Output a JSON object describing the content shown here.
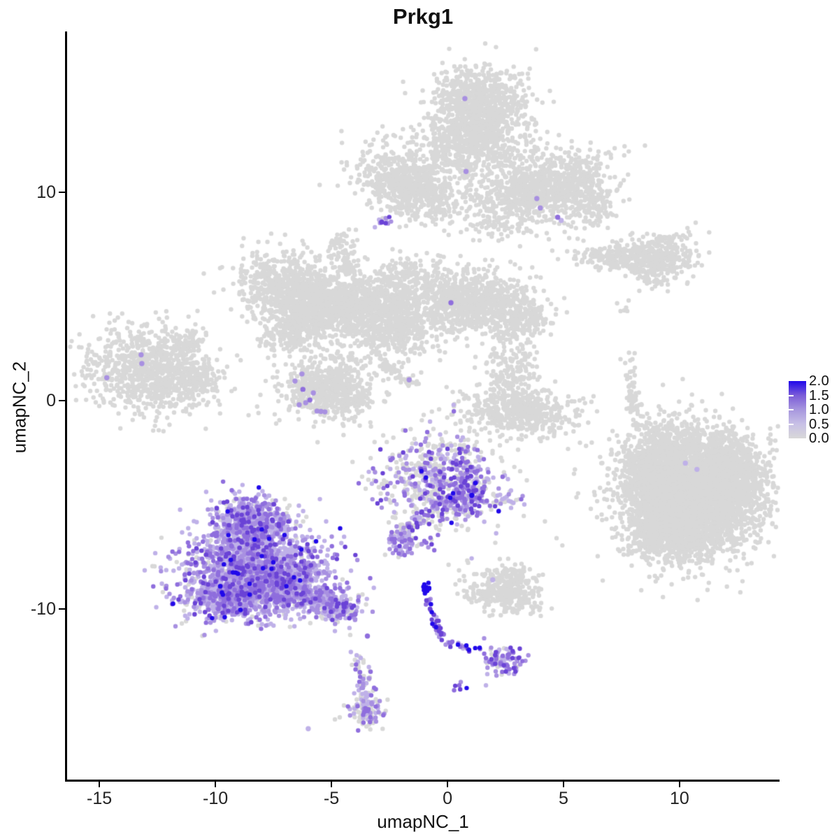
{
  "title": "Prkg1",
  "axes": {
    "x_label": "umapNC_1",
    "y_label": "umapNC_2",
    "x_ticks": [
      -15,
      -10,
      -5,
      0,
      5,
      10
    ],
    "y_ticks": [
      10,
      0,
      -10
    ]
  },
  "legend": {
    "tick_labels": [
      "2.0",
      "1.5",
      "1.0",
      "0.5",
      "0.0"
    ],
    "tick_values": [
      2.0,
      1.5,
      1.0,
      0.5,
      0.0
    ],
    "gradient_top_to_bottom": [
      "#2008ea",
      "#7b5cd8",
      "#a797de",
      "#c8c0e6",
      "#d8d8d8"
    ],
    "inner_tick_values": [
      1.5,
      1.0,
      0.5
    ]
  },
  "chart_data": {
    "type": "scatter",
    "title": "Prkg1",
    "subtitle": "",
    "xlabel": "umapNC_1",
    "ylabel": "umapNC_2",
    "xlim": [
      -16.42,
      14.31
    ],
    "ylim": [
      -18.19,
      17.72
    ],
    "x_ticks": [
      -15,
      -10,
      -5,
      0,
      5,
      10
    ],
    "y_ticks": [
      -10,
      0,
      10
    ],
    "grid": false,
    "legend_position": "right",
    "color_scale": {
      "label_range": [
        0.0,
        2.0
      ],
      "ticks": [
        0.0,
        0.5,
        1.0,
        1.5,
        2.0
      ],
      "low_color": "#d8d8d8",
      "high_color": "#2008ea"
    },
    "point_radius_px": 3.2,
    "highlight_radius_px": 3.7,
    "seed": 1337,
    "palette": {
      "0": "#d8d8d8",
      "0.5": "#bfb1e8",
      "0.75": "#a890e1",
      "1": "#8f6edd",
      "1.5": "#6a43d6",
      "2": "#2008ea"
    },
    "mixes": {
      "grey": [
        [
          "0",
          1.0
        ]
      ],
      "light_purple": [
        [
          "0",
          0.13
        ],
        [
          "0.5",
          0.5
        ],
        [
          "0.75",
          0.18
        ],
        [
          "1",
          0.12
        ],
        [
          "1.5",
          0.06
        ],
        [
          "2",
          0.01
        ]
      ],
      "purple_tail": [
        [
          "0",
          0.3
        ],
        [
          "0.5",
          0.38
        ],
        [
          "0.75",
          0.16
        ],
        [
          "1",
          0.1
        ],
        [
          "1.5",
          0.06
        ]
      ],
      "mixed_center": [
        [
          "0",
          0.5
        ],
        [
          "0.5",
          0.16
        ],
        [
          "0.75",
          0.12
        ],
        [
          "1",
          0.12
        ],
        [
          "1.5",
          0.08
        ],
        [
          "2",
          0.02
        ]
      ],
      "purple_trail": [
        [
          "0",
          0.18
        ],
        [
          "0.5",
          0.26
        ],
        [
          "0.75",
          0.22
        ],
        [
          "1",
          0.2
        ],
        [
          "1.5",
          0.14
        ]
      ],
      "purple_chain": [
        [
          "0.5",
          0.1
        ],
        [
          "0.75",
          0.2
        ],
        [
          "1",
          0.3
        ],
        [
          "1.5",
          0.25
        ],
        [
          "2",
          0.15
        ]
      ],
      "dark_streak": [
        [
          "1.5",
          0.25
        ],
        [
          "2",
          0.75
        ]
      ],
      "bottom_small": [
        [
          "0",
          0.42
        ],
        [
          "0.5",
          0.34
        ],
        [
          "0.75",
          0.14
        ],
        [
          "1",
          0.1
        ]
      ]
    },
    "clusters": [
      {
        "name": "top-head",
        "type": "blob",
        "cx": 1.4,
        "cy": 14.1,
        "sx": 1.0,
        "sy": 0.95,
        "rot": 0,
        "n": 900,
        "mix": "grey"
      },
      {
        "name": "top-bridge",
        "type": "blob",
        "cx": 1.0,
        "cy": 12.2,
        "sx": 1.1,
        "sy": 0.7,
        "rot": 0,
        "n": 500,
        "mix": "grey"
      },
      {
        "name": "top-left-wing",
        "type": "blob",
        "cx": -1.6,
        "cy": 10.4,
        "sx": 1.2,
        "sy": 0.75,
        "rot": -28,
        "n": 750,
        "mix": "grey"
      },
      {
        "name": "top-right-wing",
        "type": "blob",
        "cx": 4.1,
        "cy": 10.1,
        "sx": 1.45,
        "sy": 0.8,
        "rot": 16,
        "n": 1000,
        "mix": "grey"
      },
      {
        "name": "top-right-tip",
        "type": "blob",
        "cx": 6.4,
        "cy": 9.3,
        "sx": 0.4,
        "sy": 0.55,
        "rot": 0,
        "n": 90,
        "mix": "grey"
      },
      {
        "name": "top-gap-scatter",
        "type": "blob",
        "cx": 2.2,
        "cy": 8.9,
        "sx": 0.85,
        "sy": 0.8,
        "rot": 0,
        "n": 70,
        "mix": "grey"
      },
      {
        "name": "topdot-purple",
        "type": "blob",
        "cx": -2.85,
        "cy": 8.6,
        "sx": 0.18,
        "sy": 0.16,
        "rot": 0,
        "n": 12,
        "mix": "purple_trail"
      },
      {
        "name": "triangle-blob",
        "type": "blob",
        "cx": -4.6,
        "cy": 7.3,
        "sx": 0.33,
        "sy": 0.5,
        "rot": 0,
        "n": 70,
        "mix": "grey"
      },
      {
        "name": "triangle-trail",
        "type": "line",
        "x1": -4.45,
        "y1": 6.6,
        "x2": -3.45,
        "y2": 4.85,
        "spread": 0.13,
        "n": 35,
        "mix": "grey"
      },
      {
        "name": "mid-left-wing",
        "type": "blob",
        "cx": -6.6,
        "cy": 5.3,
        "sx": 1.1,
        "sy": 0.8,
        "rot": -20,
        "n": 850,
        "mix": "grey"
      },
      {
        "name": "mid-left-lower",
        "type": "blob",
        "cx": -6.2,
        "cy": 3.5,
        "sx": 0.9,
        "sy": 0.5,
        "rot": 28,
        "n": 420,
        "mix": "grey"
      },
      {
        "name": "mid-bridge",
        "type": "blob",
        "cx": -4.5,
        "cy": 4.7,
        "sx": 0.75,
        "sy": 0.45,
        "rot": -10,
        "n": 260,
        "mix": "grey"
      },
      {
        "name": "mid-center",
        "type": "blob",
        "cx": -2.6,
        "cy": 4.1,
        "sx": 1.1,
        "sy": 1.0,
        "rot": 0,
        "n": 950,
        "mix": "grey"
      },
      {
        "name": "mid-right-arm",
        "type": "blob",
        "cx": 1.1,
        "cy": 4.7,
        "sx": 1.3,
        "sy": 0.75,
        "rot": -8,
        "n": 950,
        "mix": "grey"
      },
      {
        "name": "mid-right-tip",
        "type": "blob",
        "cx": 3.35,
        "cy": 4.0,
        "sx": 0.5,
        "sy": 0.42,
        "rot": -25,
        "n": 150,
        "mix": "grey"
      },
      {
        "name": "mid-upper-scatter",
        "type": "blob",
        "cx": -1.9,
        "cy": 6.2,
        "sx": 0.85,
        "sy": 0.55,
        "rot": 0,
        "n": 90,
        "mix": "grey"
      },
      {
        "name": "mid-lower-round",
        "type": "blob",
        "cx": -5.1,
        "cy": 0.6,
        "sx": 1.0,
        "sy": 0.72,
        "rot": -10,
        "n": 620,
        "mix": "grey"
      },
      {
        "name": "diag-streak",
        "type": "line",
        "x1": -2.95,
        "y1": 1.9,
        "x2": -1.4,
        "y2": 0.7,
        "spread": 0.12,
        "n": 55,
        "mix": "grey"
      },
      {
        "name": "fish-main",
        "type": "blob",
        "cx": -12.8,
        "cy": 1.5,
        "sx": 1.35,
        "sy": 1.0,
        "rot": -8,
        "n": 900,
        "mix": "grey"
      },
      {
        "name": "fish-fin",
        "type": "blob",
        "cx": -11.35,
        "cy": 2.7,
        "sx": 0.42,
        "sy": 0.28,
        "rot": 42,
        "n": 70,
        "mix": "grey"
      },
      {
        "name": "fish-tail",
        "type": "blob",
        "cx": -10.7,
        "cy": 1.0,
        "sx": 0.45,
        "sy": 0.35,
        "rot": 0,
        "n": 90,
        "mix": "grey"
      },
      {
        "name": "rt-strip",
        "type": "blob",
        "cx": 7.5,
        "cy": 6.9,
        "sx": 1.05,
        "sy": 0.3,
        "rot": -5,
        "n": 220,
        "mix": "grey"
      },
      {
        "name": "rt-blob",
        "type": "blob",
        "cx": 9.3,
        "cy": 7.0,
        "sx": 0.75,
        "sy": 0.55,
        "rot": 0,
        "n": 280,
        "mix": "grey"
      },
      {
        "name": "rt-diag",
        "type": "blob",
        "cx": 8.7,
        "cy": 5.9,
        "sx": 0.38,
        "sy": 0.18,
        "rot": -35,
        "n": 45,
        "mix": "grey"
      },
      {
        "name": "rt-dots",
        "type": "blob",
        "cx": 7.7,
        "cy": 4.7,
        "sx": 0.3,
        "sy": 0.3,
        "rot": 0,
        "n": 7,
        "mix": "grey"
      },
      {
        "name": "cr-main",
        "type": "blob",
        "cx": 3.1,
        "cy": -0.5,
        "sx": 1.25,
        "sy": 0.55,
        "rot": -4,
        "n": 520,
        "mix": "grey"
      },
      {
        "name": "cr-upper",
        "type": "blob",
        "cx": 2.75,
        "cy": 1.4,
        "sx": 0.5,
        "sy": 0.95,
        "rot": 8,
        "n": 170,
        "mix": "grey"
      },
      {
        "name": "cr-topdots",
        "type": "blob",
        "cx": 2.55,
        "cy": 3.1,
        "sx": 0.2,
        "sy": 0.45,
        "rot": 0,
        "n": 8,
        "mix": "grey"
      },
      {
        "name": "r-strip-v",
        "type": "blob",
        "cx": 7.95,
        "cy": 0.2,
        "sx": 0.15,
        "sy": 0.6,
        "rot": 8,
        "n": 55,
        "mix": "grey"
      },
      {
        "name": "r-dots-upper",
        "type": "blob",
        "cx": 7.75,
        "cy": 1.9,
        "sx": 0.25,
        "sy": 0.5,
        "rot": 0,
        "n": 9,
        "mix": "grey"
      },
      {
        "name": "rbig-trail",
        "type": "line",
        "x1": 8.15,
        "y1": -0.7,
        "x2": 9.4,
        "y2": -2.1,
        "spread": 0.28,
        "n": 40,
        "mix": "grey"
      },
      {
        "name": "rbig-main",
        "type": "blob",
        "cx": 10.5,
        "cy": -4.3,
        "sx": 1.45,
        "sy": 1.45,
        "rot": 12,
        "n": 4300,
        "mix": "grey"
      },
      {
        "name": "rbig-left-lobe",
        "type": "blob",
        "cx": 8.8,
        "cy": -3.3,
        "sx": 0.55,
        "sy": 0.75,
        "rot": 0,
        "n": 350,
        "mix": "grey"
      },
      {
        "name": "rbig-left-lower",
        "type": "blob",
        "cx": 8.9,
        "cy": -6.2,
        "sx": 0.5,
        "sy": 0.6,
        "rot": 0,
        "n": 250,
        "mix": "grey"
      },
      {
        "name": "rbig-bottom",
        "type": "blob",
        "cx": 10.0,
        "cy": -6.6,
        "sx": 1.0,
        "sy": 0.5,
        "rot": 0,
        "n": 400,
        "mix": "grey"
      },
      {
        "name": "rbig-right",
        "type": "blob",
        "cx": 12.3,
        "cy": -3.6,
        "sx": 0.7,
        "sy": 0.9,
        "rot": 0,
        "n": 400,
        "mix": "grey"
      },
      {
        "name": "cm-main",
        "type": "blob",
        "cx": -0.25,
        "cy": -3.9,
        "sx": 1.25,
        "sy": 1.1,
        "rot": 0,
        "n": 680,
        "mix": "mixed_center"
      },
      {
        "name": "cm-right-dense",
        "type": "blob",
        "cx": 0.8,
        "cy": -4.5,
        "sx": 0.42,
        "sy": 0.55,
        "rot": 0,
        "n": 130,
        "mix": "purple_trail"
      },
      {
        "name": "cm-neck",
        "type": "line",
        "x1": -1.0,
        "y1": -5.5,
        "x2": -1.9,
        "y2": -6.5,
        "spread": 0.17,
        "n": 55,
        "mix": "mixed_center"
      },
      {
        "name": "cm-sub",
        "type": "blob",
        "cx": -2.05,
        "cy": -6.8,
        "sx": 0.33,
        "sy": 0.4,
        "rot": 0,
        "n": 55,
        "mix": "purple_trail"
      },
      {
        "name": "cm-pair",
        "type": "blob",
        "cx": -0.95,
        "cy": -6.9,
        "sx": 0.22,
        "sy": 0.26,
        "rot": 0,
        "n": 7,
        "mix": "purple_trail"
      },
      {
        "name": "cm-right-bit",
        "type": "blob",
        "cx": 2.7,
        "cy": -4.75,
        "sx": 0.33,
        "sy": 0.2,
        "rot": 0,
        "n": 22,
        "mix": "bottom_small"
      },
      {
        "name": "gs-main",
        "type": "blob",
        "cx": 2.4,
        "cy": -9.2,
        "sx": 0.8,
        "sy": 0.5,
        "rot": -5,
        "n": 300,
        "mix": "grey"
      },
      {
        "name": "gs-top",
        "type": "blob",
        "cx": 2.8,
        "cy": -8.4,
        "sx": 0.4,
        "sy": 0.28,
        "rot": 0,
        "n": 70,
        "mix": "grey"
      },
      {
        "name": "streak-head",
        "type": "blob",
        "cx": -0.9,
        "cy": -9.05,
        "sx": 0.12,
        "sy": 0.12,
        "rot": 0,
        "n": 16,
        "mix": "dark_streak"
      },
      {
        "name": "streak-chain",
        "type": "line",
        "x1": -0.88,
        "y1": -9.5,
        "x2": -0.2,
        "y2": -11.4,
        "spread": 0.1,
        "n": 40,
        "mix": "purple_chain"
      },
      {
        "name": "streak-branch",
        "type": "line",
        "x1": -0.05,
        "y1": -11.6,
        "x2": 1.55,
        "y2": -12.1,
        "spread": 0.1,
        "n": 22,
        "mix": "purple_chain"
      },
      {
        "name": "streak-rblob",
        "type": "blob",
        "cx": 2.3,
        "cy": -12.5,
        "sx": 0.5,
        "sy": 0.33,
        "rot": -12,
        "n": 95,
        "mix": "purple_trail"
      },
      {
        "name": "streak-below-pair",
        "type": "blob",
        "cx": 0.5,
        "cy": -13.7,
        "sx": 0.16,
        "sy": 0.2,
        "rot": 0,
        "n": 6,
        "mix": "purple_chain"
      },
      {
        "name": "bp-top",
        "type": "blob",
        "cx": -8.4,
        "cy": -5.9,
        "sx": 0.85,
        "sy": 0.65,
        "rot": 0,
        "n": 650,
        "mix": "light_purple"
      },
      {
        "name": "bp-body",
        "type": "blob",
        "cx": -8.4,
        "cy": -8.2,
        "sx": 1.5,
        "sy": 1.05,
        "rot": 0,
        "n": 1600,
        "mix": "light_purple"
      },
      {
        "name": "bp-lower",
        "type": "blob",
        "cx": -9.4,
        "cy": -9.4,
        "sx": 1.05,
        "sy": 0.55,
        "rot": 5,
        "n": 450,
        "mix": "light_purple"
      },
      {
        "name": "bp-right-mid",
        "type": "blob",
        "cx": -6.8,
        "cy": -8.8,
        "sx": 0.8,
        "sy": 0.6,
        "rot": 0,
        "n": 350,
        "mix": "light_purple"
      },
      {
        "name": "bp-tail",
        "type": "line",
        "x1": -6.0,
        "y1": -9.5,
        "x2": -4.15,
        "y2": -10.15,
        "spread": 0.33,
        "n": 320,
        "mix": "purple_tail"
      },
      {
        "name": "below-tail-dots",
        "type": "line",
        "x1": -4.05,
        "y1": -11.2,
        "x2": -3.85,
        "y2": -12.7,
        "spread": 0.1,
        "n": 6,
        "mix": "grey"
      },
      {
        "name": "bottom-small",
        "type": "blob",
        "cx": -3.5,
        "cy": -14.1,
        "sx": 0.28,
        "sy": 0.8,
        "rot": 6,
        "n": 95,
        "mix": "bottom_small"
      },
      {
        "name": "bottom-small-bulge",
        "type": "blob",
        "cx": -3.55,
        "cy": -14.9,
        "sx": 0.4,
        "sy": 0.35,
        "rot": 0,
        "n": 60,
        "mix": "bottom_small"
      }
    ],
    "singles_grey": [
      [
        -10.5,
        6.1
      ],
      [
        5.05,
        8.1
      ],
      [
        4.2,
        -5.8
      ],
      [
        4.7,
        -6.6
      ],
      [
        4.95,
        -6.95
      ],
      [
        -4.85,
        -15.3
      ]
    ],
    "highlight_points": [
      [
        0.75,
        14.5,
        "0.75"
      ],
      [
        0.8,
        11.0,
        "0.75"
      ],
      [
        3.85,
        9.7,
        "0.75"
      ],
      [
        4.0,
        9.25,
        "0.75"
      ],
      [
        4.75,
        8.8,
        "1"
      ],
      [
        4.9,
        8.65,
        "0.5"
      ],
      [
        -2.83,
        8.57,
        "1.5"
      ],
      [
        0.15,
        4.7,
        "1"
      ],
      [
        -1.65,
        1.0,
        "0.75"
      ],
      [
        -6.27,
        1.28,
        "0.75"
      ],
      [
        -6.57,
        0.94,
        "0.75"
      ],
      [
        -6.23,
        0.54,
        "1"
      ],
      [
        -5.78,
        0.37,
        "0.75"
      ],
      [
        -5.93,
        0.03,
        "1"
      ],
      [
        -6.11,
        -0.1,
        "0.75"
      ],
      [
        -6.39,
        -0.2,
        "0.75"
      ],
      [
        -5.62,
        -0.5,
        "0.75"
      ],
      [
        -5.45,
        -0.52,
        "0.75"
      ],
      [
        -5.28,
        -0.54,
        "0.75"
      ],
      [
        -13.2,
        2.2,
        "0.75"
      ],
      [
        -13.17,
        1.78,
        "0.75"
      ],
      [
        -14.68,
        1.1,
        "0.75"
      ],
      [
        10.25,
        -3.0,
        "0.5"
      ],
      [
        10.75,
        -3.3,
        "0.5"
      ],
      [
        1.05,
        -4.55,
        "2"
      ],
      [
        1.95,
        -8.6,
        "0.5"
      ],
      [
        -4.45,
        -9.9,
        "1.5"
      ],
      [
        -3.98,
        -10.25,
        "1"
      ],
      [
        -3.45,
        -11.3,
        "1"
      ],
      [
        -6.0,
        -15.75,
        "0.5"
      ]
    ]
  }
}
